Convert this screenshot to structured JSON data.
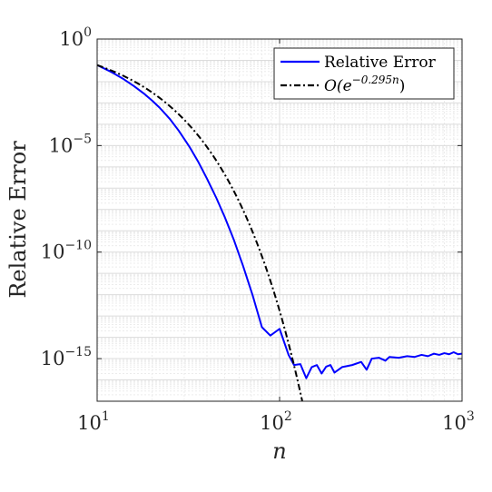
{
  "chart_data": {
    "type": "line",
    "xlabel": "n",
    "ylabel": "Relative Error",
    "xscale": "log",
    "yscale": "log",
    "xlim": [
      10,
      1000
    ],
    "ylim": [
      1e-17,
      1
    ],
    "grid": true,
    "legend_position": "top-right",
    "x_ticks": [
      {
        "value": 10,
        "base": "10",
        "exp": "1"
      },
      {
        "value": 100,
        "base": "10",
        "exp": "2"
      },
      {
        "value": 1000,
        "base": "10",
        "exp": "3"
      }
    ],
    "y_ticks": [
      {
        "value": 1,
        "base": "10",
        "exp": "0"
      },
      {
        "value": 1e-05,
        "base": "10",
        "exp": "−5"
      },
      {
        "value": 1e-10,
        "base": "10",
        "exp": "−10"
      },
      {
        "value": 1e-15,
        "base": "10",
        "exp": "−15"
      }
    ],
    "series": [
      {
        "name": "Relative Error",
        "color": "#0000ff",
        "style": "solid",
        "points": [
          [
            10,
            0.06
          ],
          [
            12,
            0.028
          ],
          [
            14,
            0.013
          ],
          [
            16,
            0.006
          ],
          [
            18,
            0.0028
          ],
          [
            20,
            0.0013
          ],
          [
            22,
            0.0006
          ],
          [
            25,
            0.00018
          ],
          [
            28,
            5e-05
          ],
          [
            32,
            9e-06
          ],
          [
            36,
            1.6e-06
          ],
          [
            40,
            2.8e-07
          ],
          [
            45,
            3.5e-08
          ],
          [
            50,
            4.5e-09
          ],
          [
            56,
            4e-10
          ],
          [
            63,
            2.3e-11
          ],
          [
            71,
            1e-12
          ],
          [
            80,
            3e-14
          ],
          [
            89,
            1.2e-14
          ],
          [
            100,
            2.5e-14
          ],
          [
            112,
            1.5e-15
          ],
          [
            120,
            5e-16
          ],
          [
            130,
            5.5e-16
          ],
          [
            140,
            1.2e-16
          ],
          [
            150,
            4e-16
          ],
          [
            160,
            5e-16
          ],
          [
            170,
            2e-16
          ],
          [
            180,
            4.2e-16
          ],
          [
            190,
            5e-16
          ],
          [
            200,
            2.2e-16
          ],
          [
            220,
            4e-16
          ],
          [
            250,
            5e-16
          ],
          [
            280,
            7e-16
          ],
          [
            300,
            3e-16
          ],
          [
            320,
            1e-15
          ],
          [
            350,
            1.1e-15
          ],
          [
            380,
            8e-16
          ],
          [
            400,
            1.2e-15
          ],
          [
            450,
            1.1e-15
          ],
          [
            500,
            1.3e-15
          ],
          [
            550,
            1.2e-15
          ],
          [
            600,
            1.5e-15
          ],
          [
            650,
            1.3e-15
          ],
          [
            700,
            1.7e-15
          ],
          [
            750,
            1.5e-15
          ],
          [
            800,
            1.8e-15
          ],
          [
            850,
            1.6e-15
          ],
          [
            900,
            2e-15
          ],
          [
            950,
            1.6e-15
          ],
          [
            1000,
            1.7e-15
          ]
        ]
      },
      {
        "name": "O(e^{-0.295n})",
        "label_prefix": "O(e",
        "label_exp": "−0.295n",
        "label_suffix": ")",
        "color": "#000000",
        "style": "dashdot",
        "function": "exp",
        "coefficient": 1.14,
        "rate": -0.295,
        "x_range": [
          10,
          140
        ]
      }
    ]
  }
}
